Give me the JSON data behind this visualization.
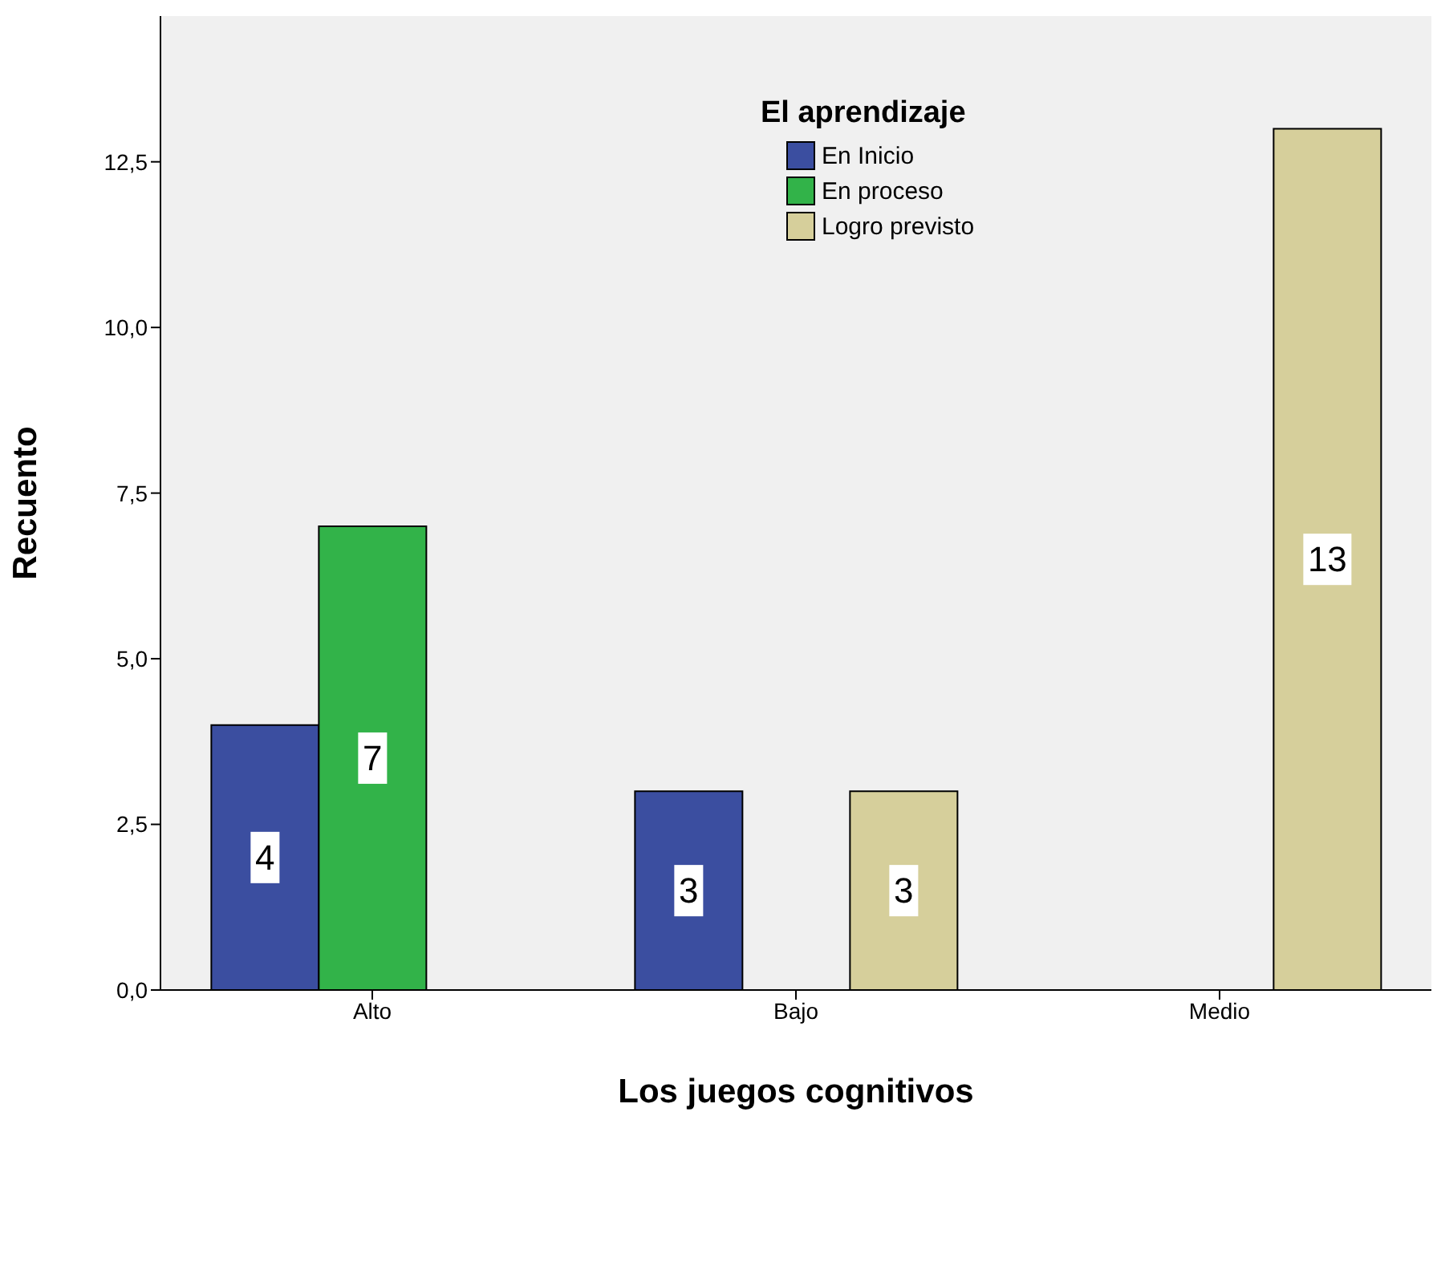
{
  "chart_data": {
    "type": "bar",
    "xlabel": "Los juegos cognitivos",
    "ylabel": "Recuento",
    "legend_title": "El aprendizaje",
    "categories": [
      "Alto",
      "Bajo",
      "Medio"
    ],
    "series": [
      {
        "name": "En Inicio",
        "color": "#3b4ea0",
        "values": [
          4,
          3,
          null
        ]
      },
      {
        "name": "En proceso",
        "color": "#32b349",
        "values": [
          7,
          null,
          null
        ]
      },
      {
        "name": "Logro previsto",
        "color": "#d6cf9b",
        "values": [
          null,
          3,
          13
        ]
      }
    ],
    "ylim": [
      0,
      14.7
    ],
    "yticks": [
      {
        "value": 0,
        "label": "0,0"
      },
      {
        "value": 2.5,
        "label": "2,5"
      },
      {
        "value": 5,
        "label": "5,0"
      },
      {
        "value": 7.5,
        "label": "7,5"
      },
      {
        "value": 10,
        "label": "10,0"
      },
      {
        "value": 12.5,
        "label": "12,5"
      }
    ],
    "grid": false,
    "legend": "top",
    "data_labels": true
  }
}
